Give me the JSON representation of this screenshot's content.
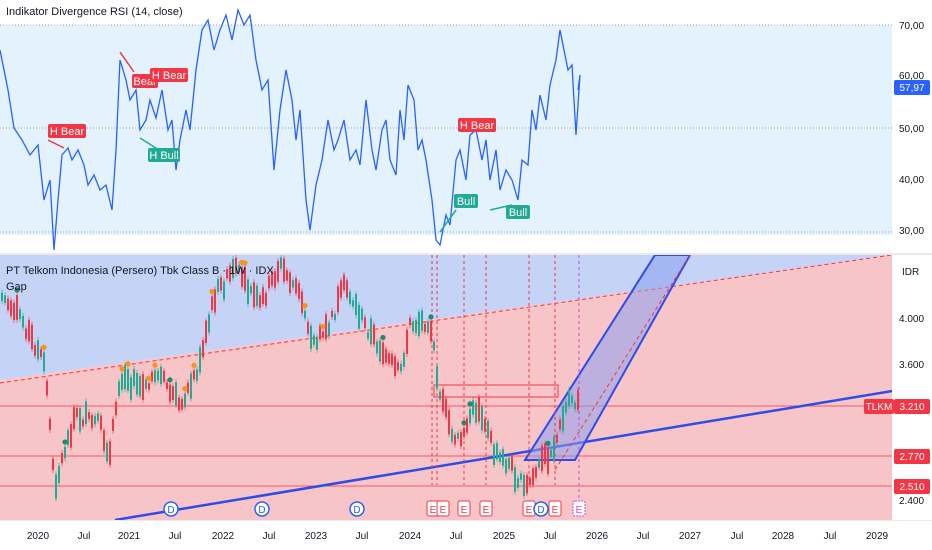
{
  "rsi_pane": {
    "title": "Indikator Divergence RSI (14, close)",
    "axis_labels": [
      "70,00",
      "60,00",
      "50,00",
      "40,00",
      "30,00"
    ],
    "current_value": "57,97",
    "colors": {
      "background": "#e3f2fd",
      "line": "#2962ff",
      "bear": "#f23645",
      "bull": "#22ab94"
    },
    "divergence_labels": [
      {
        "text": "H Bear",
        "kind": "bear"
      },
      {
        "text": "Bear",
        "kind": "bear"
      },
      {
        "text": "H Bear",
        "kind": "bear"
      },
      {
        "text": "H Bull",
        "kind": "bull"
      },
      {
        "text": "H Bear",
        "kind": "bear"
      },
      {
        "text": "Bull",
        "kind": "bull"
      },
      {
        "text": "Bull",
        "kind": "bull"
      }
    ]
  },
  "price_pane": {
    "title": "PT Telkom Indonesia (Persero) Tbk Class B · 1W · IDX",
    "subtitle": "Gap",
    "currency": "IDR",
    "axis_labels": [
      "4.000",
      "3.600",
      "2.400"
    ],
    "ticker": "TLKM",
    "last_price": "3.210",
    "level_labels": [
      "2.770",
      "2.510"
    ],
    "event_markers": [
      "D",
      "D",
      "D",
      "E",
      "E",
      "E",
      "E",
      "E",
      "D",
      "E",
      "E"
    ],
    "colors": {
      "upper_zone": "#c5d3f7",
      "lower_zone": "#f7c4c8",
      "trend_line": "#2f4ce6",
      "level_line": "#f23645",
      "up_candle": "#22ab94",
      "down_candle": "#f23645"
    }
  },
  "time_axis": {
    "labels": [
      "2020",
      "Jul",
      "2021",
      "Jul",
      "2022",
      "Jul",
      "2023",
      "Jul",
      "2024",
      "Jul",
      "2025",
      "Jul",
      "2026",
      "Jul",
      "2027",
      "Jul",
      "2028",
      "Jul",
      "2029"
    ]
  }
}
